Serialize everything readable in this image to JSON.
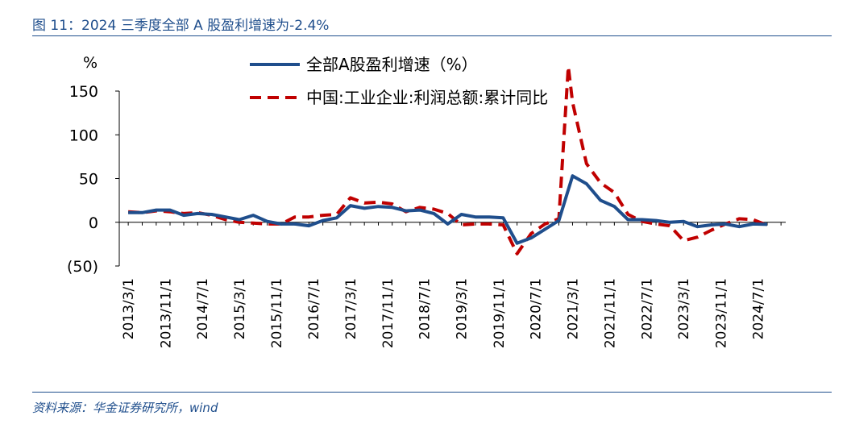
{
  "figure": {
    "title": "图 11：2024 三季度全部 A 股盈利增速为-2.4%",
    "source": "资料来源：华金证券研究所，wind"
  },
  "colors": {
    "header": "#1f4e8c",
    "series_a": "#1f4e8c",
    "series_b": "#c00000"
  },
  "chart_data": {
    "type": "line",
    "ylabel": "%",
    "ylim": [
      -50,
      150
    ],
    "y_ticks": [
      150,
      100,
      50,
      0,
      -50
    ],
    "y_tick_labels": [
      "150",
      "100",
      "50",
      "0",
      "(50)"
    ],
    "x_tick_labels": [
      "2013/3/1",
      "2013/11/1",
      "2014/7/1",
      "2015/3/1",
      "2015/11/1",
      "2016/7/1",
      "2017/3/1",
      "2017/11/1",
      "2018/7/1",
      "2019/3/1",
      "2019/11/1",
      "2020/7/1",
      "2021/3/1",
      "2021/11/1",
      "2022/7/1",
      "2023/3/1",
      "2023/11/1",
      "2024/7/1"
    ],
    "legend_position": "top",
    "grid": false,
    "series": [
      {
        "name": "全部A股盈利增速（%）",
        "style": "solid",
        "x": [
          "2013/3/1",
          "2013/6/1",
          "2013/9/1",
          "2013/12/1",
          "2014/3/1",
          "2014/6/1",
          "2014/9/1",
          "2014/12/1",
          "2015/3/1",
          "2015/6/1",
          "2015/9/1",
          "2015/12/1",
          "2016/3/1",
          "2016/6/1",
          "2016/9/1",
          "2016/12/1",
          "2017/3/1",
          "2017/6/1",
          "2017/9/1",
          "2017/12/1",
          "2018/3/1",
          "2018/6/1",
          "2018/9/1",
          "2018/12/1",
          "2019/3/1",
          "2019/6/1",
          "2019/9/1",
          "2019/12/1",
          "2020/3/1",
          "2020/6/1",
          "2020/9/1",
          "2020/12/1",
          "2021/3/1",
          "2021/6/1",
          "2021/9/1",
          "2021/12/1",
          "2022/3/1",
          "2022/6/1",
          "2022/9/1",
          "2022/12/1",
          "2023/3/1",
          "2023/6/1",
          "2023/9/1",
          "2023/12/1",
          "2024/3/1",
          "2024/6/1",
          "2024/9/1"
        ],
        "values": [
          11,
          11,
          14,
          14,
          8,
          10,
          9,
          6,
          3,
          8,
          1,
          -2,
          -2,
          -4,
          2,
          5,
          19,
          16,
          18,
          17,
          13,
          14,
          10,
          -2,
          9,
          6,
          6,
          5,
          -24,
          -18,
          -8,
          2,
          53,
          44,
          25,
          18,
          3,
          3,
          2,
          0,
          1,
          -5,
          -3,
          -2,
          -5,
          -2,
          -2.4
        ]
      },
      {
        "name": "中国:工业企业:利润总额:累计同比",
        "style": "dashed",
        "x": [
          "2013/3/1",
          "2013/6/1",
          "2013/9/1",
          "2013/12/1",
          "2014/3/1",
          "2014/6/1",
          "2014/9/1",
          "2014/12/1",
          "2015/3/1",
          "2015/6/1",
          "2015/9/1",
          "2015/12/1",
          "2016/3/1",
          "2016/6/1",
          "2016/9/1",
          "2016/12/1",
          "2017/3/1",
          "2017/6/1",
          "2017/9/1",
          "2017/12/1",
          "2018/3/1",
          "2018/6/1",
          "2018/9/1",
          "2018/12/1",
          "2019/3/1",
          "2019/6/1",
          "2019/9/1",
          "2019/12/1",
          "2020/3/1",
          "2020/6/1",
          "2020/9/1",
          "2020/12/1",
          "2021/2/1",
          "2021/3/1",
          "2021/6/1",
          "2021/9/1",
          "2021/12/1",
          "2022/3/1",
          "2022/6/1",
          "2022/9/1",
          "2022/12/1",
          "2023/3/1",
          "2023/6/1",
          "2023/9/1",
          "2023/12/1",
          "2024/3/1",
          "2024/6/1",
          "2024/9/1"
        ],
        "values": [
          12,
          11,
          13,
          12,
          10,
          11,
          8,
          3,
          0,
          -1,
          -2,
          -2,
          6,
          6,
          8,
          9,
          28,
          22,
          23,
          21,
          12,
          17,
          15,
          10,
          -3,
          -2,
          -2,
          -3,
          -36,
          -13,
          -2,
          4,
          178,
          137,
          67,
          45,
          34,
          9,
          1,
          -2,
          -4,
          -21,
          -17,
          -9,
          -2,
          4,
          3,
          -3.5
        ]
      }
    ]
  }
}
